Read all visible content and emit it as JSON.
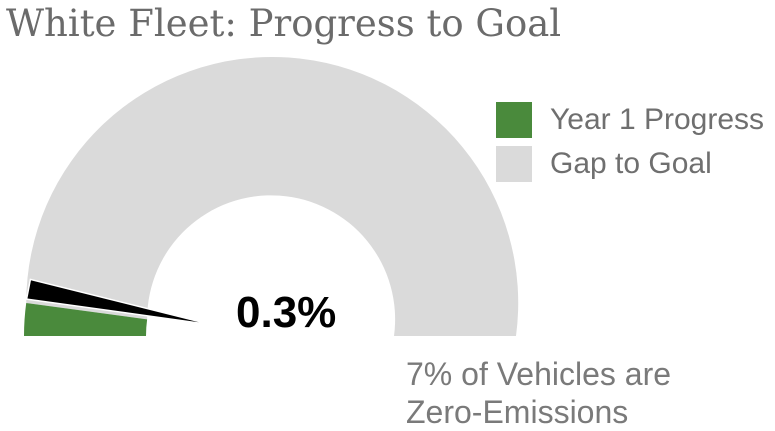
{
  "title": "White Fleet: Progress to Goal",
  "legend": {
    "items": [
      {
        "label": "Year 1 Progress",
        "color": "#4a8a3c"
      },
      {
        "label": "Gap to Goal",
        "color": "#dadada"
      }
    ]
  },
  "gauge": {
    "value_label": "0.3%",
    "goal_label_line1": "7% of Vehicles are",
    "goal_label_line2": "Zero-Emissions"
  },
  "chart_data": {
    "type": "gauge",
    "title": "White Fleet: Progress to Goal",
    "series": [
      {
        "name": "Year 1 Progress",
        "value": 0.3,
        "color": "#4a8a3c"
      },
      {
        "name": "Gap to Goal",
        "value": 6.7,
        "color": "#dadada"
      }
    ],
    "goal": 7,
    "unit": "%",
    "value_label": "0.3%",
    "needle_value": 0.3,
    "needle_color": "#000000"
  }
}
